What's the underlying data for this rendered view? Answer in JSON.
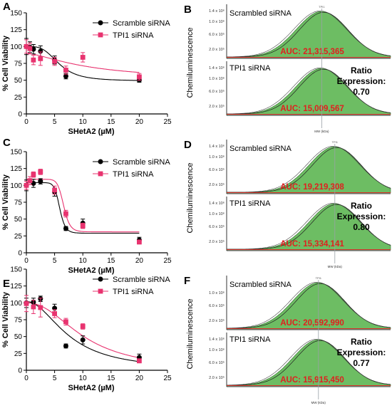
{
  "chart_data": [
    {
      "panel": "A",
      "type": "scatter",
      "xlabel": "SHetA2 (µM)",
      "ylabel": "% Cell Viability",
      "xlim": [
        0,
        25
      ],
      "ylim": [
        0,
        150
      ],
      "xticks": [
        0,
        5,
        10,
        15,
        20,
        25
      ],
      "yticks": [
        0,
        25,
        50,
        75,
        100,
        125,
        150
      ],
      "legend_position": "top-right",
      "series": [
        {
          "name": "Scramble siRNA",
          "color": "#000000",
          "marker": "circle",
          "x": [
            0,
            0.625,
            1.25,
            2.5,
            5,
            7,
            20
          ],
          "y": [
            100,
            99,
            96,
            93,
            80,
            56,
            50
          ],
          "err": [
            12,
            8,
            7,
            8,
            6,
            4,
            3
          ],
          "fit": {
            "bottom": 49,
            "top": 100,
            "ec50": 5.8,
            "hill": 3.5
          }
        },
        {
          "name": "TPI1 siRNA",
          "color": "#e8336f",
          "marker": "square",
          "x": [
            0,
            0.625,
            1.25,
            2.5,
            5,
            7,
            10,
            20
          ],
          "y": [
            100,
            97,
            80,
            82,
            78,
            65,
            84,
            55
          ],
          "err": [
            10,
            8,
            7,
            10,
            6,
            6,
            7,
            5
          ],
          "fit": {
            "bottom": 50,
            "top": 90,
            "ec50": 11.0,
            "hill": 1.5
          }
        }
      ]
    },
    {
      "panel": "C",
      "type": "scatter",
      "xlabel": "SHetA2 (µM)",
      "ylabel": "% Cell Viability",
      "xlim": [
        0,
        25
      ],
      "ylim": [
        0,
        150
      ],
      "xticks": [
        0,
        5,
        10,
        15,
        20,
        25
      ],
      "yticks": [
        0,
        25,
        50,
        75,
        100,
        125,
        150
      ],
      "legend_position": "top-right",
      "series": [
        {
          "name": "Scramble siRNA",
          "color": "#000000",
          "marker": "circle",
          "x": [
            0,
            1.25,
            2.5,
            5,
            7,
            10,
            20
          ],
          "y": [
            100,
            103,
            106,
            90,
            36,
            44,
            19
          ],
          "err": [
            8,
            6,
            4,
            6,
            3,
            6,
            4
          ],
          "fit": {
            "bottom": 29,
            "top": 104,
            "ec50": 5.9,
            "hill": 12
          }
        },
        {
          "name": "TPI1 siRNA",
          "color": "#e8336f",
          "marker": "square",
          "x": [
            0,
            0.625,
            1.25,
            2.5,
            5,
            7,
            10,
            20
          ],
          "y": [
            100,
            107,
            116,
            120,
            93,
            58,
            40,
            16
          ],
          "err": [
            6,
            6,
            4,
            4,
            6,
            5,
            4,
            3
          ],
          "fit": {
            "bottom": 31,
            "top": 109,
            "ec50": 6.6,
            "hill": 12
          }
        }
      ]
    },
    {
      "panel": "E",
      "type": "scatter",
      "xlabel": "SHetA2 (µM)",
      "ylabel": "% Cell Viability",
      "xlim": [
        0,
        25
      ],
      "ylim": [
        0,
        150
      ],
      "xticks": [
        0,
        5,
        10,
        15,
        20,
        25
      ],
      "yticks": [
        0,
        25,
        50,
        75,
        100,
        125,
        150
      ],
      "legend_position": "top-right",
      "series": [
        {
          "name": "Scramble siRNA",
          "color": "#000000",
          "marker": "circle",
          "x": [
            0,
            1.25,
            2.5,
            5,
            7,
            10,
            20
          ],
          "y": [
            100,
            101,
            106,
            92,
            36,
            45,
            19
          ],
          "err": [
            7,
            6,
            4,
            6,
            3,
            6,
            5
          ],
          "fit": {
            "bottom": 0,
            "top": 102,
            "ec50": 7.6,
            "hill": 2.0
          }
        },
        {
          "name": "TPI1 siRNA",
          "color": "#e8336f",
          "marker": "square",
          "x": [
            0,
            1.25,
            2.5,
            5,
            7,
            10,
            20
          ],
          "y": [
            99,
            94,
            93,
            84,
            72,
            65,
            14
          ],
          "err": [
            12,
            10,
            14,
            6,
            5,
            4,
            3
          ],
          "fit": {
            "bottom": 0,
            "top": 100,
            "ec50": 10.2,
            "hill": 2.2
          }
        }
      ]
    },
    {
      "panel": "B",
      "type": "area",
      "ylabel": "Chemiluminescence",
      "xlabel": "MW (kDa)",
      "peak_label": "TPI1",
      "ratio_label": "Ratio Expression:",
      "ratio": "0.70",
      "lanes": [
        {
          "name": "Scrambled siRNA",
          "auc_text": "AUC: 21,315,365",
          "auc": 21315365,
          "yticks": [
            "1.4 x 10⁶",
            "1.0 x 10⁶",
            "6.0 x 10⁵",
            "2.0 x 10⁵"
          ],
          "peak_pos": 0.58
        },
        {
          "name": "TPI1 siRNA",
          "auc_text": "AUC: 15,009,567",
          "auc": 15009567,
          "yticks": [
            "1.4 x 10⁶",
            "1.0 x 10⁶",
            "6.0 x 10⁵",
            "2.0 x 10⁵"
          ],
          "peak_pos": 0.58
        }
      ]
    },
    {
      "panel": "D",
      "type": "area",
      "ylabel": "Chemiluminescence",
      "xlabel": "MW (kDa)",
      "peak_label": "TPI1",
      "ratio_label": "Ratio Expression:",
      "ratio": "0.80",
      "lanes": [
        {
          "name": "Scrambled siRNA",
          "auc_text": "AUC: 19,219,308",
          "auc": 19219308,
          "yticks": [
            "1.4 x 10⁶",
            "1.0 x 10⁶",
            "6.0 x 10⁵",
            "2.0 x 10⁵"
          ],
          "peak_pos": 0.66
        },
        {
          "name": "TPI1 siRNA",
          "auc_text": "AUC: 15,334,141",
          "auc": 15334141,
          "yticks": [
            "1.4 x 10⁶",
            "1.0 x 10⁶",
            "6.0 x 10⁵",
            "2.0 x 10⁵"
          ],
          "peak_pos": 0.66
        }
      ]
    },
    {
      "panel": "F",
      "type": "area",
      "ylabel": "Chemiluminescence",
      "xlabel": "MW (kDa)",
      "peak_label": "TPI1",
      "ratio_label": "Ratio Expression:",
      "ratio": "0.77",
      "lanes": [
        {
          "name": "Scrambled siRNA",
          "auc_text": "AUC: 20,592,990",
          "auc": 20592990,
          "yticks": [
            "1.0 x 10⁶",
            "6.0 x 10⁵",
            "2.0 x 10⁵"
          ],
          "peak_pos": 0.56
        },
        {
          "name": "TPI1 siRNA",
          "auc_text": "AUC: 15,915,450",
          "auc": 15915450,
          "yticks": [
            "1.4 x 10⁶",
            "1.0 x 10⁶",
            "6.0 x 10⁵",
            "2.0 x 10⁵"
          ],
          "peak_pos": 0.56
        }
      ]
    }
  ],
  "colors": {
    "scramble": "#000000",
    "tpi1": "#e8336f",
    "peak_fill": "#6dbd63",
    "auc_text": "#e0201f",
    "guide_line": "#9aa0a6"
  }
}
